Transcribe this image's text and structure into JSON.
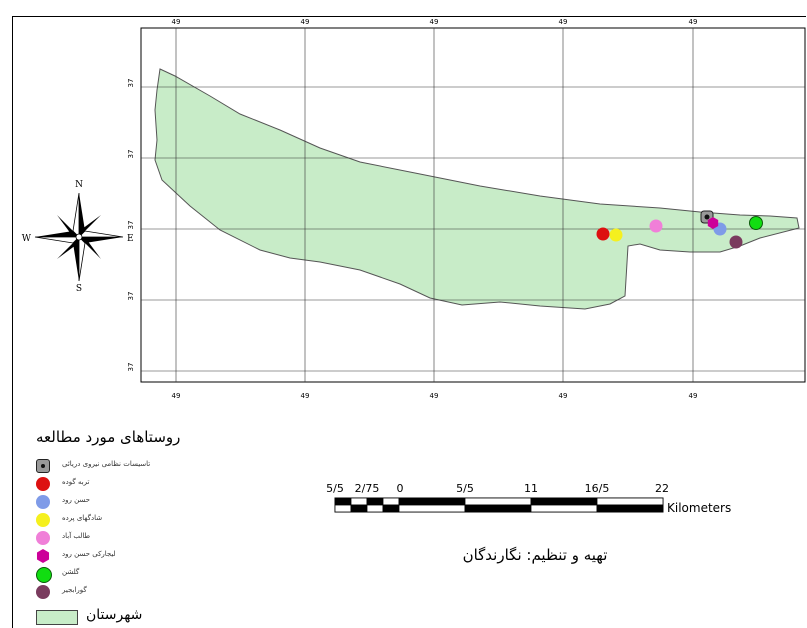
{
  "map": {
    "grid_longitude_label": "49",
    "grid_latitude_label": "37",
    "compass": {
      "north": "N",
      "south": "S",
      "east": "E",
      "west": "W"
    }
  },
  "villages": [
    {
      "name": "تاسیسات نظامی نیروی دریائی",
      "color": "#888888",
      "symbol": "square-dot"
    },
    {
      "name": "تربه گوده",
      "color": "#dd1111",
      "symbol": "circle"
    },
    {
      "name": "حسن رود",
      "color": "#7f9be8",
      "symbol": "circle"
    },
    {
      "name": "شادگهای پرده",
      "color": "#f5f01e",
      "symbol": "circle"
    },
    {
      "name": "طالب آباد",
      "color": "#f07fd8",
      "symbol": "circle"
    },
    {
      "name": "لیجارکی حسن رود",
      "color": "#cc0099",
      "symbol": "hexagon"
    },
    {
      "name": "گلشن",
      "color": "#11dd11",
      "symbol": "circle"
    },
    {
      "name": "گورابجیر",
      "color": "#7a3b5e",
      "symbol": "circle"
    }
  ],
  "legend": {
    "title": "روستاهای مورد مطالعه",
    "county_label": "شهرستان",
    "county_color": "#c8ecc8"
  },
  "scale_bar": {
    "labels": [
      "5/5",
      "2/75",
      "0",
      "5/5",
      "11",
      "16/5",
      "22"
    ],
    "unit": "Kilometers"
  },
  "credit": "تهیه و تنظیم: نگارندگان"
}
